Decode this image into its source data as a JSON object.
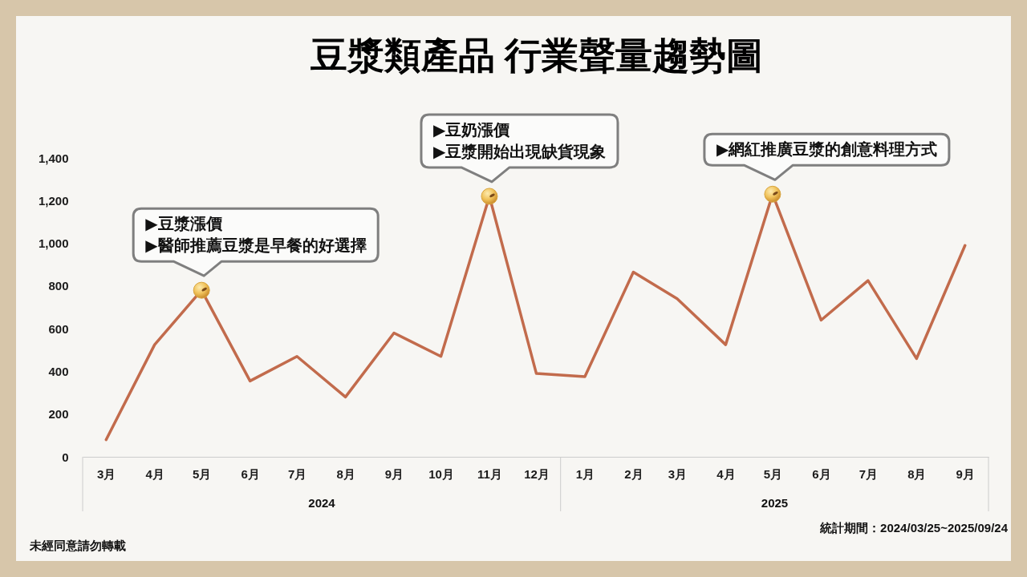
{
  "chart_data": {
    "type": "line",
    "title": "豆漿類產品 行業聲量趨勢圖",
    "x": [
      "2024-03",
      "2024-04",
      "2024-05",
      "2024-06",
      "2024-07",
      "2024-08",
      "2024-09",
      "2024-10",
      "2024-11",
      "2024-12",
      "2025-01",
      "2025-02",
      "2025-03",
      "2025-04",
      "2025-05",
      "2025-06",
      "2025-07",
      "2025-08",
      "2025-09"
    ],
    "series": [
      {
        "color": "#c26b4c",
        "values": [
          80,
          525,
          780,
          355,
          470,
          280,
          580,
          470,
          1220,
          390,
          375,
          865,
          740,
          525,
          1230,
          640,
          825,
          460,
          990
        ]
      }
    ],
    "xlim": [
      "2024-02-15",
      "2025-09-16"
    ],
    "xticks": [
      {
        "value": "2024-03",
        "label": "3月"
      },
      {
        "value": "2024-04",
        "label": "4月"
      },
      {
        "value": "2024-05",
        "label": "5月"
      },
      {
        "value": "2024-06",
        "label": "6月"
      },
      {
        "value": "2024-07",
        "label": "7月"
      },
      {
        "value": "2024-08",
        "label": "8月"
      },
      {
        "value": "2024-09",
        "label": "9月"
      },
      {
        "value": "2024-10",
        "label": "10月"
      },
      {
        "value": "2024-11",
        "label": "11月"
      },
      {
        "value": "2024-12",
        "label": "12月"
      },
      {
        "value": "2025-01",
        "label": "1月"
      },
      {
        "value": "2025-02",
        "label": "2月"
      },
      {
        "value": "2025-03",
        "label": "3月"
      },
      {
        "value": "2025-04",
        "label": "4月"
      },
      {
        "value": "2025-05",
        "label": "5月"
      },
      {
        "value": "2025-06",
        "label": "6月"
      },
      {
        "value": "2025-07",
        "label": "7月"
      },
      {
        "value": "2025-08",
        "label": "8月"
      },
      {
        "value": "2025-09",
        "label": "9月"
      }
    ],
    "ylim": [
      0,
      1400
    ],
    "yticks": [
      0,
      200,
      400,
      600,
      800,
      {
        "value": 1000,
        "label": "1,000"
      },
      {
        "value": 1200,
        "label": "1,200"
      },
      {
        "value": 1400,
        "label": "1,400"
      }
    ],
    "annotations": [
      "2024",
      "2025",
      {
        "text": "▶豆漿漲價\n▶醫師推薦豆漿是早餐的好選擇",
        "x": "2024-05",
        "y": 780
      },
      {
        "text": "▶豆奶漲價\n▶豆漿開始出現缺貨現象",
        "x": "2024-11",
        "y": 1220
      },
      {
        "text": "▶網紅推廣豆漿的創意料理方式",
        "x": "2025-05",
        "y": 1230
      },
      "統計期間：2024/03/25~2025/09/24",
      "未經同意請勿轉載"
    ]
  }
}
